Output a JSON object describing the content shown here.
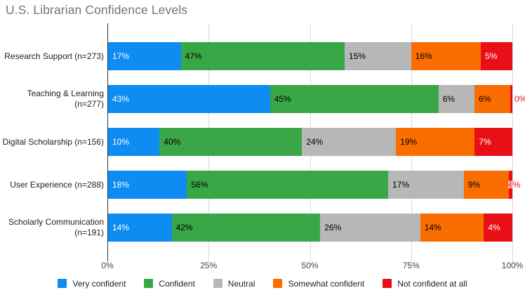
{
  "title": "U.S. Librarian Confidence Levels",
  "colors": {
    "title_text": "#757575",
    "axis_line": "#333333",
    "gridline": "#d9d9d9",
    "label_text": "#222222",
    "tick_text": "#444444"
  },
  "chart_data": {
    "type": "bar",
    "stacked": true,
    "orientation": "horizontal",
    "title": "U.S. Librarian Confidence Levels",
    "categories": [
      "Research Support (n=273)",
      "Teaching & Learning (n=277)",
      "Digital Scholarship (n=156)",
      "User Experience (n=288)",
      "Scholarly Communication (n=191)"
    ],
    "series": [
      {
        "name": "Very confident",
        "color": "#0e8cf2",
        "label_color": "#ffffff",
        "values": [
          17,
          43,
          10,
          18,
          14
        ]
      },
      {
        "name": "Confident",
        "color": "#3aa747",
        "label_color": "#000000",
        "values": [
          47,
          45,
          40,
          56,
          42
        ]
      },
      {
        "name": "Neutral",
        "color": "#b7b7b7",
        "label_color": "#000000",
        "values": [
          15,
          6,
          24,
          17,
          26
        ]
      },
      {
        "name": "Somewhat confident",
        "color": "#fa6e01",
        "label_color": "#000000",
        "values": [
          16,
          6,
          19,
          9,
          14
        ]
      },
      {
        "name": "Not confident at all",
        "color": "#e90f17",
        "label_color": "#ffffff",
        "values": [
          5,
          0,
          7,
          1,
          4
        ]
      }
    ],
    "data_label_format": "{value}%",
    "x_ticks": [
      0,
      25,
      50,
      75,
      100
    ],
    "x_tick_labels": [
      "0%",
      "25%",
      "50%",
      "75%",
      "100%"
    ],
    "xlim": [
      0,
      100
    ],
    "grid": "vertical",
    "legend_position": "bottom"
  }
}
